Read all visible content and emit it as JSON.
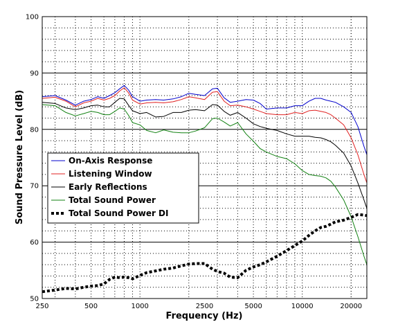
{
  "chart_data": {
    "type": "line",
    "title": "",
    "xlabel": "Frequency (Hz)",
    "ylabel": "Sound Pressure Level (dB)",
    "x_scale": "log",
    "xlim": [
      250,
      25000
    ],
    "ylim": [
      50,
      100
    ],
    "x_ticks": [
      250,
      500,
      1000,
      2500,
      5000,
      10000,
      20000
    ],
    "x_tick_labels": [
      "250",
      "500",
      "1000",
      "2500",
      "5000",
      "10000",
      "20000"
    ],
    "y_ticks": [
      50,
      60,
      70,
      80,
      90,
      100
    ],
    "y_tick_labels": [
      "50",
      "60",
      "70",
      "80",
      "90",
      "100"
    ],
    "grid": "major solid horizontal, minor dotted",
    "legend_position": "center-left",
    "series": [
      {
        "name": "On-Axis Response",
        "color": "#0000cc",
        "style": "solid",
        "x": [
          250,
          300,
          350,
          400,
          450,
          500,
          550,
          600,
          650,
          700,
          750,
          800,
          850,
          900,
          1000,
          1100,
          1250,
          1400,
          1600,
          1800,
          2000,
          2200,
          2500,
          2800,
          3000,
          3300,
          3600,
          4000,
          4500,
          5000,
          5500,
          6000,
          7000,
          8000,
          9000,
          10000,
          11000,
          12000,
          13000,
          14000,
          15000,
          16000,
          18000,
          20000,
          22000,
          24000,
          25000
        ],
        "y": [
          85.8,
          86.0,
          85.2,
          84.3,
          85.0,
          85.3,
          85.8,
          85.5,
          86.0,
          86.5,
          87.2,
          87.8,
          87.0,
          85.8,
          85.0,
          85.2,
          85.3,
          85.2,
          85.4,
          85.8,
          86.4,
          86.2,
          86.0,
          87.2,
          87.3,
          85.6,
          84.8,
          85.0,
          85.3,
          85.2,
          84.6,
          83.6,
          83.8,
          83.8,
          84.2,
          84.2,
          85.0,
          85.5,
          85.5,
          85.2,
          85.0,
          84.8,
          84.0,
          83.0,
          80.5,
          77.0,
          75.5
        ]
      },
      {
        "name": "Listening Window",
        "color": "#e02020",
        "style": "solid",
        "x": [
          250,
          300,
          350,
          400,
          450,
          500,
          550,
          600,
          650,
          700,
          750,
          800,
          850,
          900,
          1000,
          1100,
          1250,
          1400,
          1600,
          1800,
          2000,
          2200,
          2500,
          2800,
          3000,
          3300,
          3600,
          4000,
          4500,
          5000,
          5500,
          6000,
          7000,
          8000,
          9000,
          10000,
          11000,
          12000,
          13000,
          14000,
          15000,
          16000,
          18000,
          20000,
          22000,
          24000,
          25000
        ],
        "y": [
          85.5,
          85.7,
          85.0,
          84.0,
          84.7,
          85.0,
          85.5,
          85.2,
          85.5,
          86.0,
          86.8,
          87.4,
          86.5,
          85.2,
          84.5,
          84.7,
          84.8,
          84.7,
          84.9,
          85.3,
          85.8,
          85.6,
          85.3,
          86.6,
          86.7,
          85.0,
          84.2,
          84.3,
          84.0,
          83.6,
          83.2,
          82.8,
          82.6,
          82.6,
          83.0,
          82.8,
          83.3,
          83.4,
          83.2,
          83.0,
          82.6,
          82.0,
          80.8,
          78.5,
          75.5,
          72.0,
          70.5
        ]
      },
      {
        "name": "Early Reflections",
        "color": "#000000",
        "style": "solid",
        "x": [
          250,
          300,
          350,
          400,
          450,
          500,
          550,
          600,
          650,
          700,
          750,
          800,
          850,
          900,
          1000,
          1100,
          1250,
          1400,
          1600,
          1800,
          2000,
          2200,
          2500,
          2800,
          3000,
          3300,
          3600,
          4000,
          4500,
          5000,
          5500,
          6000,
          7000,
          8000,
          9000,
          10000,
          11000,
          12000,
          13000,
          14000,
          15000,
          16000,
          18000,
          20000,
          22000,
          24000,
          25000
        ],
        "y": [
          84.8,
          84.6,
          83.8,
          83.5,
          83.8,
          84.2,
          84.3,
          84.0,
          84.0,
          84.8,
          85.5,
          85.4,
          84.3,
          83.3,
          82.8,
          83.0,
          82.2,
          82.3,
          83.0,
          83.0,
          83.4,
          83.5,
          83.3,
          84.4,
          84.3,
          83.2,
          82.5,
          83.0,
          82.0,
          81.0,
          80.5,
          80.2,
          79.8,
          79.2,
          78.8,
          78.8,
          78.8,
          78.6,
          78.5,
          78.2,
          77.8,
          77.2,
          75.8,
          73.5,
          70.5,
          67.5,
          66.0
        ]
      },
      {
        "name": "Total Sound Power",
        "color": "#108010",
        "style": "solid",
        "x": [
          250,
          300,
          350,
          400,
          450,
          500,
          550,
          600,
          650,
          700,
          750,
          800,
          850,
          900,
          1000,
          1100,
          1250,
          1400,
          1600,
          1800,
          2000,
          2200,
          2500,
          2800,
          3000,
          3300,
          3600,
          4000,
          4500,
          5000,
          5500,
          6000,
          7000,
          8000,
          9000,
          10000,
          11000,
          12000,
          13000,
          14000,
          15000,
          16000,
          18000,
          20000,
          22000,
          24000,
          25000
        ],
        "y": [
          84.4,
          84.2,
          83.0,
          82.4,
          82.8,
          83.2,
          83.0,
          82.6,
          82.6,
          83.2,
          83.8,
          83.6,
          82.5,
          81.2,
          80.8,
          79.8,
          79.4,
          79.9,
          79.5,
          79.4,
          79.4,
          79.7,
          80.3,
          81.9,
          82.0,
          81.3,
          80.6,
          81.2,
          79.2,
          77.9,
          76.6,
          76.0,
          75.2,
          74.8,
          73.9,
          72.7,
          72.0,
          71.8,
          71.7,
          71.4,
          70.8,
          69.8,
          67.5,
          64.5,
          61.0,
          57.5,
          56.0
        ]
      },
      {
        "name": "Total Sound Power DI",
        "color": "#000000",
        "style": "thick-dotted",
        "x": [
          250,
          300,
          350,
          400,
          450,
          500,
          550,
          600,
          650,
          700,
          750,
          800,
          850,
          900,
          1000,
          1100,
          1250,
          1400,
          1600,
          1800,
          2000,
          2200,
          2500,
          2800,
          3000,
          3300,
          3600,
          4000,
          4500,
          5000,
          5500,
          6000,
          7000,
          8000,
          9000,
          10000,
          11000,
          12000,
          13000,
          14000,
          15000,
          16000,
          18000,
          20000,
          22000,
          24000,
          25000
        ],
        "y": [
          51.2,
          51.5,
          51.8,
          51.7,
          52.0,
          52.2,
          52.3,
          52.6,
          53.4,
          53.8,
          53.7,
          53.8,
          53.7,
          53.5,
          54.1,
          54.6,
          54.9,
          55.2,
          55.4,
          55.8,
          56.1,
          56.2,
          56.2,
          55.2,
          54.8,
          54.5,
          53.8,
          53.7,
          55.0,
          55.6,
          56.0,
          56.5,
          57.5,
          58.5,
          59.4,
          60.2,
          61.2,
          62.0,
          62.6,
          62.8,
          63.2,
          63.6,
          63.9,
          64.4,
          64.9,
          64.8,
          64.7
        ]
      }
    ]
  }
}
